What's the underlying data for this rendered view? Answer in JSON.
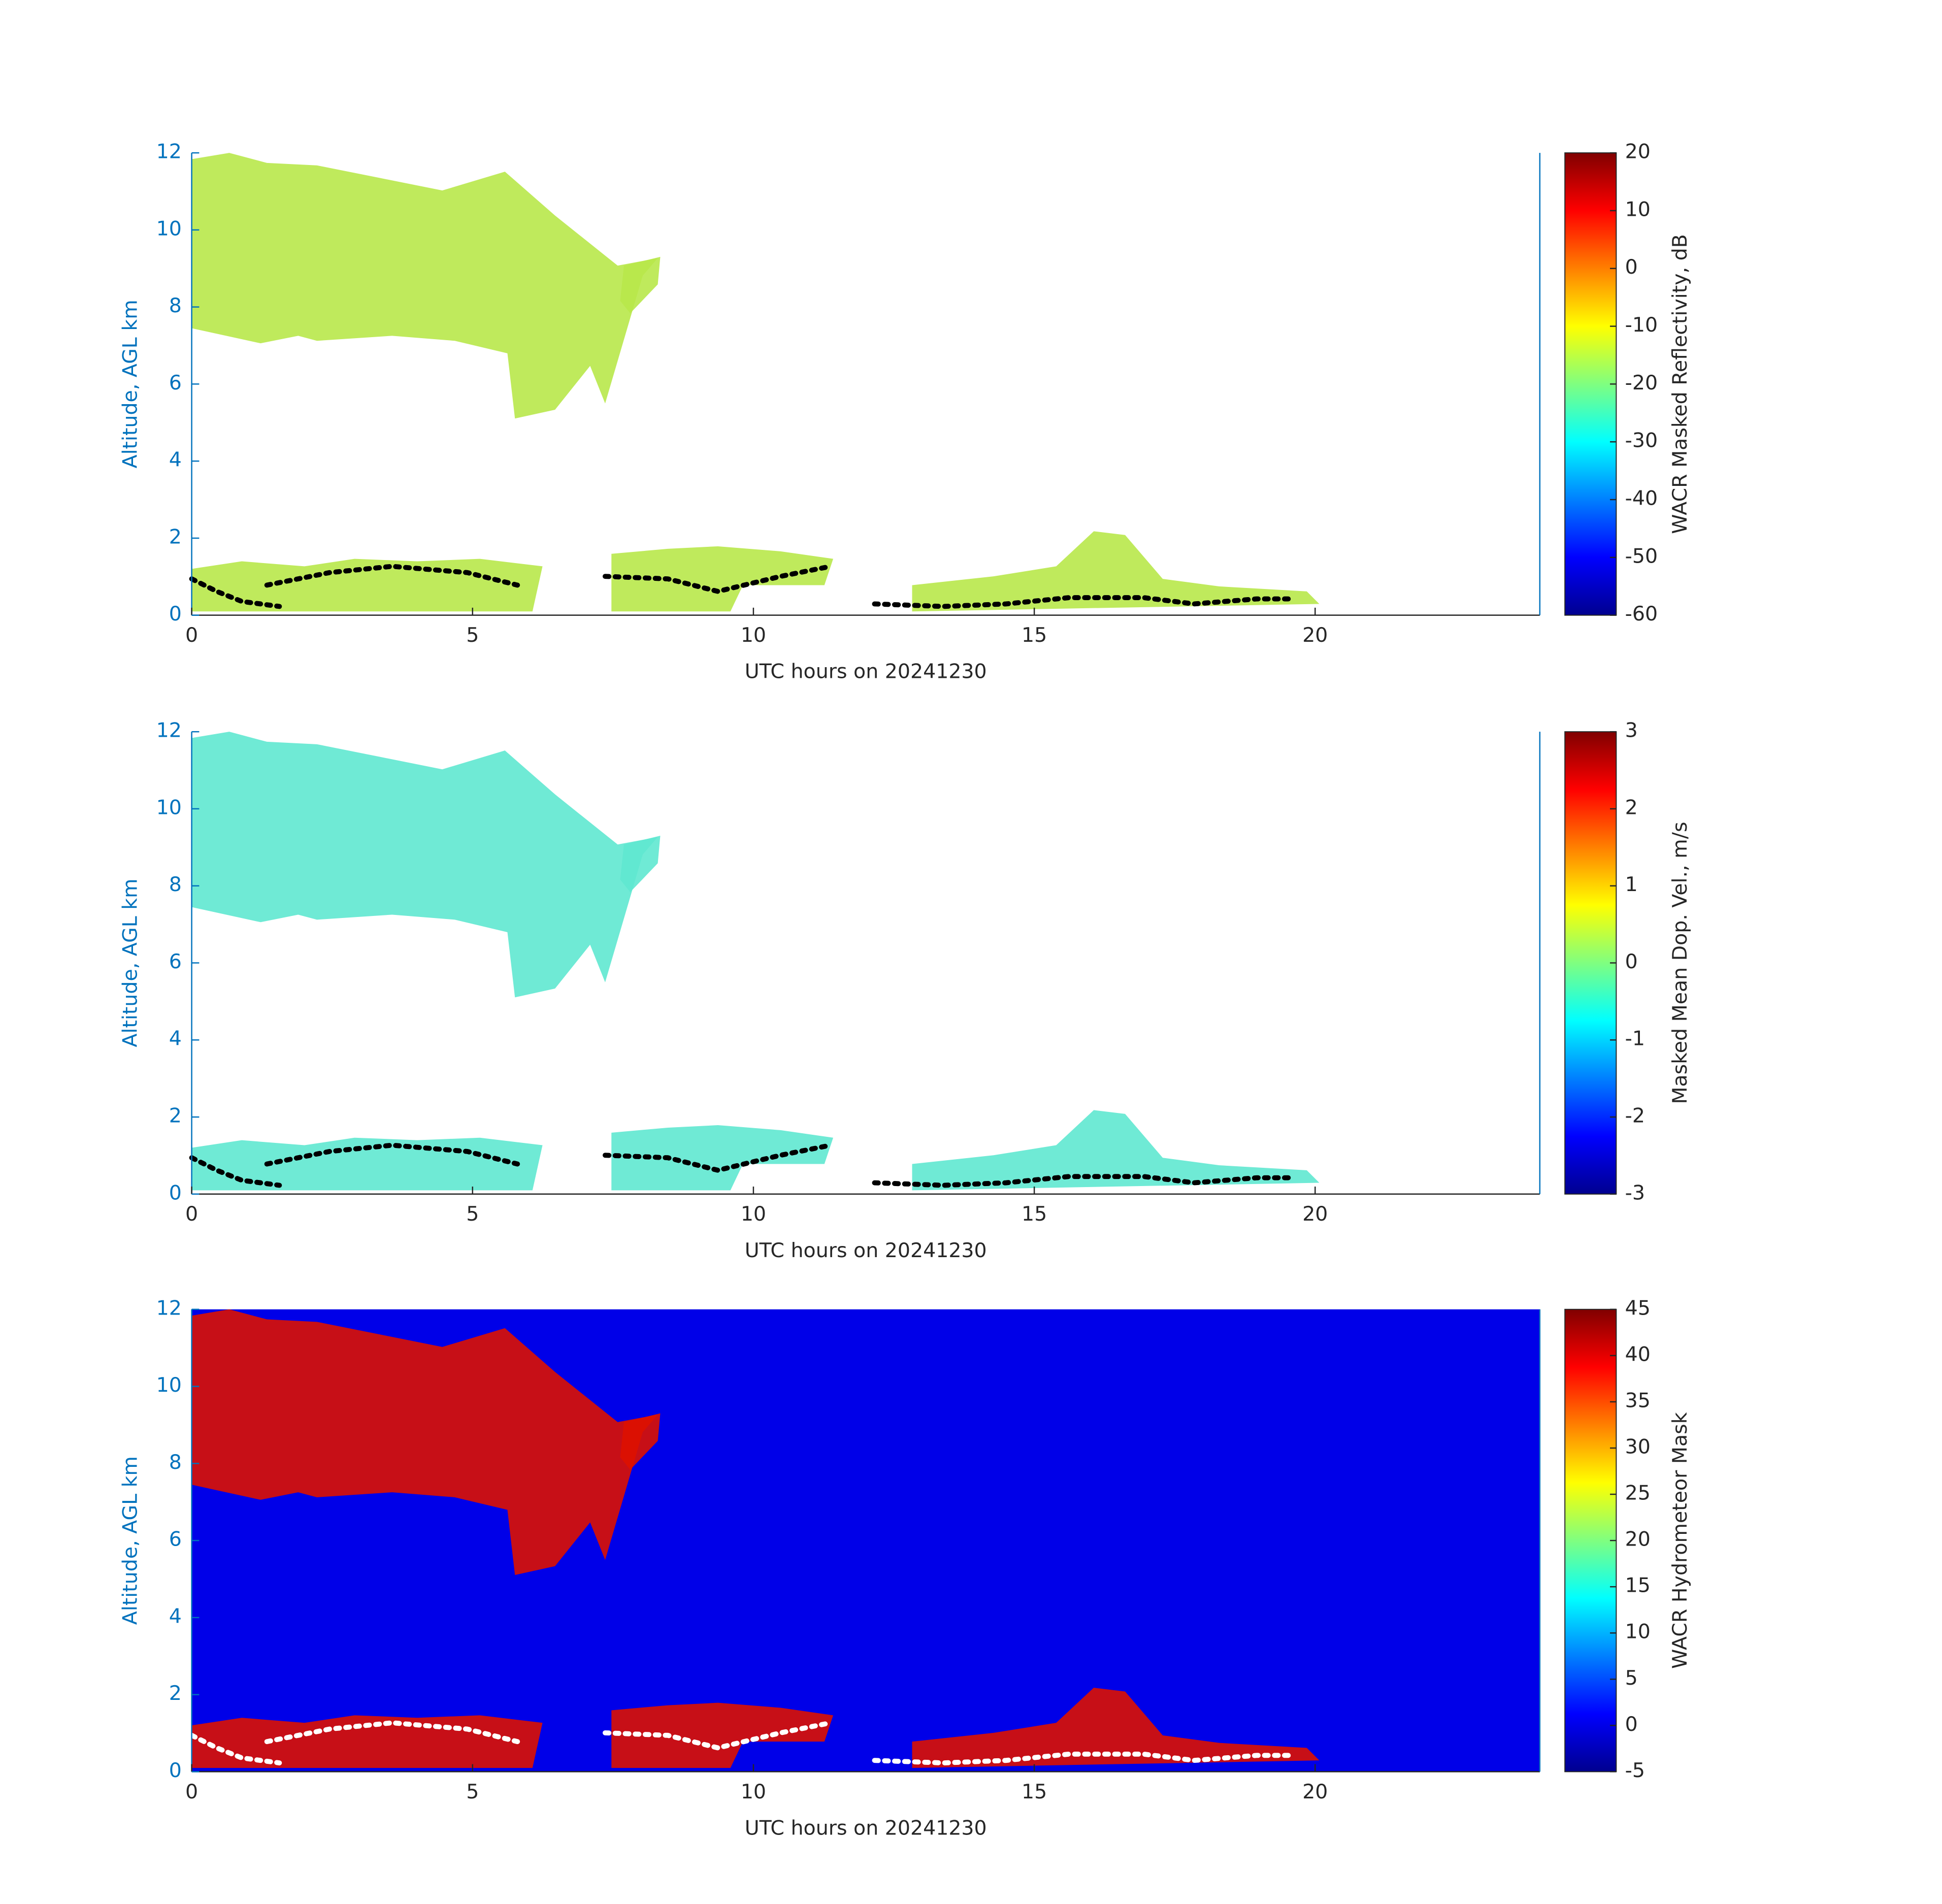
{
  "chart_data": [
    {
      "type": "heatmap",
      "y_label": "Altitude, AGL km",
      "x_label": "UTC hours on 20241230",
      "colorbar_label": "WACR Masked Reflectivity, dB",
      "xlim": [
        0,
        24
      ],
      "xticks": [
        0,
        5,
        10,
        15,
        20
      ],
      "ylim": [
        0,
        12
      ],
      "yticks": [
        0,
        2,
        4,
        6,
        8,
        10,
        12
      ],
      "clim": [
        -60,
        20
      ],
      "cticks": [
        -60,
        -50,
        -40,
        -30,
        -20,
        -10,
        0,
        10,
        20
      ],
      "colormap": "jet",
      "background": "#ffffff",
      "cloud_color": "#b8e84a",
      "dot_color": "#000000"
    },
    {
      "type": "heatmap",
      "y_label": "Altitude, AGL km",
      "x_label": "UTC hours on 20241230",
      "colorbar_label": "Masked Mean Dop. Vel., m/s",
      "xlim": [
        0,
        24
      ],
      "xticks": [
        0,
        5,
        10,
        15,
        20
      ],
      "ylim": [
        0,
        12
      ],
      "yticks": [
        0,
        2,
        4,
        6,
        8,
        10,
        12
      ],
      "clim": [
        -3,
        3
      ],
      "cticks": [
        -3,
        -2,
        -1,
        0,
        1,
        2,
        3
      ],
      "colormap": "jet",
      "background": "#ffffff",
      "cloud_color": "#5fe8d0",
      "dot_color": "#000000"
    },
    {
      "type": "heatmap",
      "y_label": "Altitude, AGL km",
      "x_label": "UTC hours on 20241230",
      "colorbar_label": "WACR Hydrometeor Mask",
      "xlim": [
        0,
        24
      ],
      "xticks": [
        0,
        5,
        10,
        15,
        20
      ],
      "ylim": [
        0,
        12
      ],
      "yticks": [
        0,
        2,
        4,
        6,
        8,
        10,
        12
      ],
      "clim": [
        -5,
        45
      ],
      "cticks": [
        -5,
        0,
        5,
        10,
        15,
        20,
        25,
        30,
        35,
        40,
        45
      ],
      "colormap": "jet",
      "background": "#0000e8",
      "cloud_color": "#dd1100",
      "dot_color": "#ffffff"
    }
  ]
}
